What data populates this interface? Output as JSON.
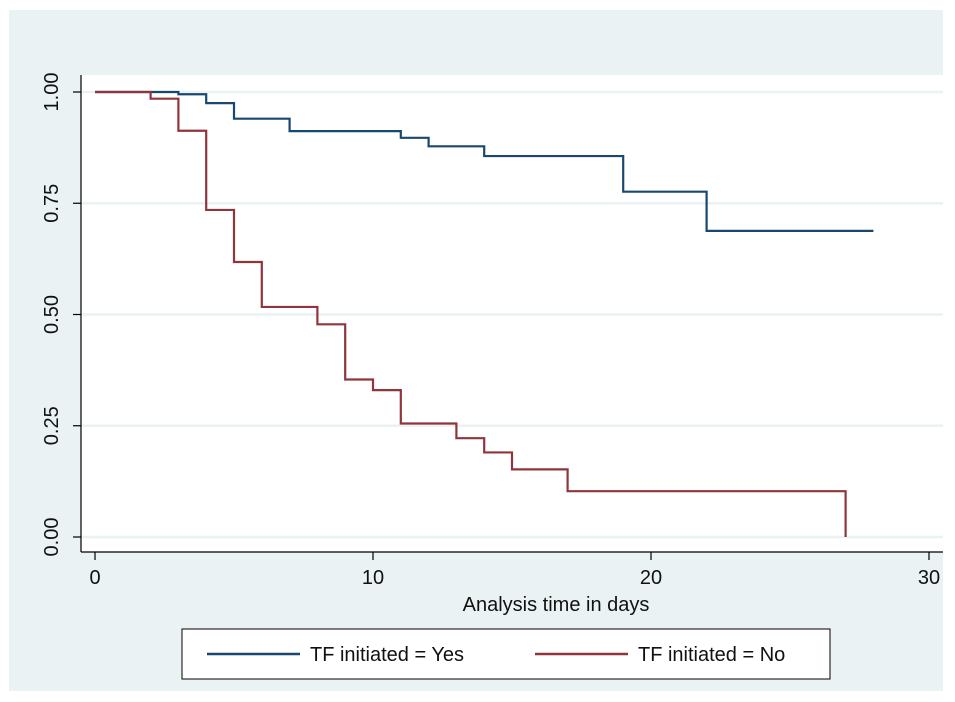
{
  "chart_data": {
    "type": "line",
    "step": true,
    "xlabel": "Analysis time in days",
    "ylabel": "",
    "xlim": [
      0,
      30
    ],
    "ylim": [
      0,
      1
    ],
    "xticks": [
      0,
      10,
      20,
      30
    ],
    "yticks": [
      0,
      0.25,
      0.5,
      0.75,
      1
    ],
    "xtick_labels": [
      "0",
      "10",
      "20",
      "30"
    ],
    "ytick_labels": [
      "0.00",
      "0.25",
      "0.50",
      "0.75",
      "1.00"
    ],
    "grid": "horizontal",
    "legend_position": "bottom",
    "colors": {
      "outer_background": "#eaf2f3",
      "plot_background": "#ffffff",
      "grid": "#eaf2f3",
      "axis": "#000000"
    },
    "series": [
      {
        "name": "TF initiated = Yes",
        "color": "#1a476f",
        "x": [
          0,
          3,
          4,
          5,
          7,
          11,
          12,
          14,
          19,
          22,
          28
        ],
        "y": [
          1.0,
          0.995,
          0.975,
          0.94,
          0.912,
          0.897,
          0.878,
          0.856,
          0.776,
          0.688,
          0.688
        ]
      },
      {
        "name": "TF initiated = No",
        "color": "#90353b",
        "x": [
          0,
          2,
          3,
          4,
          5,
          6,
          8,
          9,
          10,
          11,
          13,
          14,
          15,
          17,
          27,
          27
        ],
        "y": [
          1.0,
          0.985,
          0.913,
          0.735,
          0.618,
          0.517,
          0.478,
          0.354,
          0.33,
          0.255,
          0.222,
          0.19,
          0.152,
          0.103,
          0.103,
          0.0
        ]
      }
    ]
  }
}
